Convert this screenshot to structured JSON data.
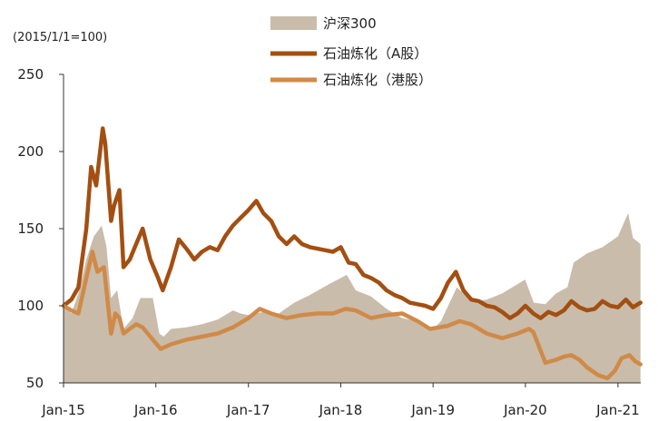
{
  "chart_data": {
    "type": "line",
    "unit_note": "(2015/1/1=100)",
    "ylim": [
      50,
      250
    ],
    "yticks": [
      250,
      200,
      150,
      100,
      50
    ],
    "xlim": [
      "2015-01-01",
      "2021-04-01"
    ],
    "xticks": [
      {
        "label": "Jan-15",
        "date": "2015-01-01"
      },
      {
        "label": "Jan-16",
        "date": "2016-01-01"
      },
      {
        "label": "Jan-17",
        "date": "2017-01-01"
      },
      {
        "label": "Jan-18",
        "date": "2018-01-01"
      },
      {
        "label": "Jan-19",
        "date": "2019-01-01"
      },
      {
        "label": "Jan-20",
        "date": "2020-01-01"
      },
      {
        "label": "Jan-21",
        "date": "2021-01-01"
      }
    ],
    "grid": false,
    "legend_position": "top-center",
    "series": [
      {
        "name": "沪深300",
        "kind": "area",
        "color": "#c9bcaa",
        "points": [
          [
            "2015-01-01",
            100
          ],
          [
            "2015-02-01",
            95
          ],
          [
            "2015-03-01",
            108
          ],
          [
            "2015-04-01",
            130
          ],
          [
            "2015-05-01",
            145
          ],
          [
            "2015-06-01",
            152
          ],
          [
            "2015-06-20",
            138
          ],
          [
            "2015-07-08",
            105
          ],
          [
            "2015-08-01",
            110
          ],
          [
            "2015-08-26",
            85
          ],
          [
            "2015-10-01",
            92
          ],
          [
            "2015-11-01",
            105
          ],
          [
            "2015-12-20",
            105
          ],
          [
            "2016-01-15",
            82
          ],
          [
            "2016-02-01",
            80
          ],
          [
            "2016-03-01",
            85
          ],
          [
            "2016-05-01",
            86
          ],
          [
            "2016-07-01",
            88
          ],
          [
            "2016-09-01",
            91
          ],
          [
            "2016-11-01",
            97
          ],
          [
            "2016-12-01",
            95
          ],
          [
            "2017-01-01",
            94
          ],
          [
            "2017-03-01",
            96
          ],
          [
            "2017-05-01",
            95
          ],
          [
            "2017-07-01",
            102
          ],
          [
            "2017-09-01",
            107
          ],
          [
            "2017-11-15",
            114
          ],
          [
            "2018-01-25",
            120
          ],
          [
            "2018-03-01",
            110
          ],
          [
            "2018-05-01",
            106
          ],
          [
            "2018-07-01",
            98
          ],
          [
            "2018-09-01",
            92
          ],
          [
            "2018-11-01",
            90
          ],
          [
            "2019-01-03",
            85
          ],
          [
            "2019-02-01",
            90
          ],
          [
            "2019-04-05",
            112
          ],
          [
            "2019-06-01",
            103
          ],
          [
            "2019-08-01",
            104
          ],
          [
            "2019-10-01",
            108
          ],
          [
            "2019-12-31",
            117
          ],
          [
            "2020-02-03",
            102
          ],
          [
            "2020-03-20",
            101
          ],
          [
            "2020-05-01",
            108
          ],
          [
            "2020-06-15",
            112
          ],
          [
            "2020-07-10",
            128
          ],
          [
            "2020-09-01",
            134
          ],
          [
            "2020-11-01",
            138
          ],
          [
            "2021-01-01",
            145
          ],
          [
            "2021-02-10",
            160
          ],
          [
            "2021-03-01",
            144
          ],
          [
            "2021-03-31",
            140
          ]
        ]
      },
      {
        "name": "石油炼化（A股）",
        "kind": "line",
        "color": "#a34f12",
        "points": [
          [
            "2015-01-01",
            100
          ],
          [
            "2015-02-01",
            104
          ],
          [
            "2015-03-01",
            112
          ],
          [
            "2015-04-01",
            150
          ],
          [
            "2015-04-20",
            190
          ],
          [
            "2015-05-10",
            178
          ],
          [
            "2015-06-05",
            215
          ],
          [
            "2015-06-15",
            205
          ],
          [
            "2015-07-08",
            155
          ],
          [
            "2015-07-20",
            165
          ],
          [
            "2015-08-10",
            175
          ],
          [
            "2015-08-26",
            125
          ],
          [
            "2015-09-20",
            130
          ],
          [
            "2015-10-15",
            140
          ],
          [
            "2015-11-10",
            150
          ],
          [
            "2015-12-10",
            130
          ],
          [
            "2016-01-10",
            118
          ],
          [
            "2016-01-28",
            110
          ],
          [
            "2016-03-01",
            125
          ],
          [
            "2016-04-01",
            143
          ],
          [
            "2016-05-01",
            137
          ],
          [
            "2016-06-01",
            130
          ],
          [
            "2016-07-01",
            135
          ],
          [
            "2016-08-01",
            138
          ],
          [
            "2016-09-01",
            136
          ],
          [
            "2016-10-01",
            145
          ],
          [
            "2016-11-01",
            152
          ],
          [
            "2016-12-01",
            157
          ],
          [
            "2017-01-01",
            162
          ],
          [
            "2017-02-01",
            168
          ],
          [
            "2017-03-01",
            160
          ],
          [
            "2017-04-01",
            155
          ],
          [
            "2017-05-01",
            145
          ],
          [
            "2017-06-01",
            140
          ],
          [
            "2017-07-01",
            145
          ],
          [
            "2017-08-01",
            140
          ],
          [
            "2017-09-01",
            138
          ],
          [
            "2017-10-01",
            137
          ],
          [
            "2017-11-01",
            136
          ],
          [
            "2017-12-01",
            135
          ],
          [
            "2018-01-01",
            138
          ],
          [
            "2018-02-01",
            128
          ],
          [
            "2018-03-01",
            127
          ],
          [
            "2018-04-01",
            120
          ],
          [
            "2018-05-01",
            118
          ],
          [
            "2018-06-01",
            115
          ],
          [
            "2018-07-01",
            110
          ],
          [
            "2018-08-01",
            107
          ],
          [
            "2018-09-01",
            105
          ],
          [
            "2018-10-01",
            102
          ],
          [
            "2018-11-01",
            101
          ],
          [
            "2018-12-01",
            100
          ],
          [
            "2019-01-01",
            98
          ],
          [
            "2019-02-01",
            105
          ],
          [
            "2019-03-01",
            115
          ],
          [
            "2019-04-01",
            122
          ],
          [
            "2019-05-01",
            110
          ],
          [
            "2019-06-01",
            104
          ],
          [
            "2019-07-01",
            103
          ],
          [
            "2019-08-01",
            100
          ],
          [
            "2019-09-01",
            99
          ],
          [
            "2019-10-01",
            96
          ],
          [
            "2019-11-01",
            92
          ],
          [
            "2019-12-01",
            95
          ],
          [
            "2020-01-01",
            100
          ],
          [
            "2020-02-01",
            95
          ],
          [
            "2020-03-01",
            92
          ],
          [
            "2020-04-01",
            96
          ],
          [
            "2020-05-01",
            94
          ],
          [
            "2020-06-01",
            97
          ],
          [
            "2020-07-01",
            103
          ],
          [
            "2020-08-01",
            99
          ],
          [
            "2020-09-01",
            97
          ],
          [
            "2020-10-01",
            98
          ],
          [
            "2020-11-01",
            103
          ],
          [
            "2020-12-01",
            100
          ],
          [
            "2021-01-01",
            99
          ],
          [
            "2021-02-01",
            104
          ],
          [
            "2021-03-01",
            99
          ],
          [
            "2021-03-31",
            102
          ]
        ]
      },
      {
        "name": "石油炼化（港股）",
        "kind": "line",
        "color": "#d08a48",
        "points": [
          [
            "2015-01-01",
            100
          ],
          [
            "2015-02-01",
            97
          ],
          [
            "2015-03-01",
            95
          ],
          [
            "2015-04-01",
            118
          ],
          [
            "2015-04-25",
            135
          ],
          [
            "2015-05-15",
            122
          ],
          [
            "2015-06-10",
            125
          ],
          [
            "2015-07-08",
            82
          ],
          [
            "2015-07-25",
            95
          ],
          [
            "2015-08-10",
            92
          ],
          [
            "2015-08-26",
            82
          ],
          [
            "2015-09-20",
            85
          ],
          [
            "2015-10-15",
            88
          ],
          [
            "2015-11-10",
            86
          ],
          [
            "2015-12-10",
            80
          ],
          [
            "2016-01-20",
            72
          ],
          [
            "2016-03-01",
            75
          ],
          [
            "2016-05-01",
            78
          ],
          [
            "2016-07-01",
            80
          ],
          [
            "2016-09-01",
            82
          ],
          [
            "2016-11-01",
            86
          ],
          [
            "2017-01-01",
            92
          ],
          [
            "2017-02-15",
            98
          ],
          [
            "2017-04-01",
            95
          ],
          [
            "2017-06-01",
            92
          ],
          [
            "2017-08-01",
            94
          ],
          [
            "2017-10-01",
            95
          ],
          [
            "2017-12-01",
            95
          ],
          [
            "2018-01-20",
            98
          ],
          [
            "2018-03-01",
            97
          ],
          [
            "2018-05-01",
            92
          ],
          [
            "2018-07-01",
            94
          ],
          [
            "2018-09-01",
            95
          ],
          [
            "2018-11-01",
            90
          ],
          [
            "2018-12-20",
            85
          ],
          [
            "2019-03-01",
            87
          ],
          [
            "2019-04-15",
            90
          ],
          [
            "2019-06-01",
            88
          ],
          [
            "2019-08-01",
            82
          ],
          [
            "2019-10-01",
            79
          ],
          [
            "2019-12-01",
            82
          ],
          [
            "2020-01-15",
            85
          ],
          [
            "2020-02-01",
            83
          ],
          [
            "2020-03-20",
            63
          ],
          [
            "2020-05-01",
            65
          ],
          [
            "2020-06-01",
            67
          ],
          [
            "2020-07-01",
            68
          ],
          [
            "2020-08-01",
            65
          ],
          [
            "2020-09-01",
            60
          ],
          [
            "2020-10-15",
            55
          ],
          [
            "2020-11-20",
            53
          ],
          [
            "2020-12-20",
            58
          ],
          [
            "2021-01-15",
            66
          ],
          [
            "2021-02-15",
            68
          ],
          [
            "2021-03-10",
            64
          ],
          [
            "2021-03-31",
            62
          ]
        ]
      }
    ]
  }
}
